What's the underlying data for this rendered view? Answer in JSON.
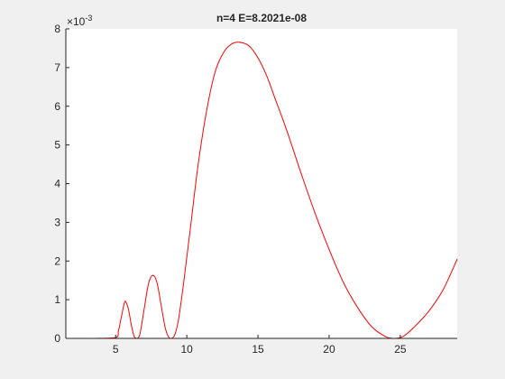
{
  "chart_data": {
    "type": "line",
    "title": "n=4 E=8.2021e-08",
    "xlabel": "",
    "ylabel": "",
    "xlim": [
      1.5,
      29
    ],
    "ylim": [
      0,
      8
    ],
    "y_exponent_label": "×10",
    "y_exponent_power": "-3",
    "x_ticks": [
      5,
      10,
      15,
      20,
      25
    ],
    "x_tick_labels": [
      "5",
      "10",
      "15",
      "20",
      "25"
    ],
    "y_ticks": [
      0,
      1,
      2,
      3,
      4,
      5,
      6,
      7,
      8
    ],
    "y_tick_labels": [
      "0",
      "1",
      "2",
      "3",
      "4",
      "5",
      "6",
      "7",
      "8"
    ],
    "grid": false,
    "background_color": "#f0f0f0",
    "axes_color": "#ffffff",
    "series": [
      {
        "color": "#ff0000",
        "x": [
          1.5,
          3.5,
          5.0,
          5.2,
          5.4,
          5.6,
          5.7,
          5.9,
          6.1,
          6.3,
          6.5,
          6.7,
          7.0,
          7.3,
          7.6,
          7.9,
          8.2,
          8.5,
          8.8,
          9.1,
          9.4,
          9.8,
          10.3,
          10.8,
          11.4,
          12.0,
          12.6,
          13.2,
          13.8,
          14.4,
          15.0,
          15.6,
          16.2,
          17.0,
          18.0,
          19.0,
          20.0,
          21.0,
          22.0,
          23.0,
          24.0,
          24.6,
          25.2,
          26.0,
          27.0,
          28.0,
          29.0
        ],
        "y": [
          0,
          0,
          0.02,
          0.2,
          0.55,
          0.9,
          0.95,
          0.75,
          0.35,
          0.05,
          0.0,
          0.1,
          0.75,
          1.4,
          1.63,
          1.45,
          0.85,
          0.25,
          0.0,
          0.05,
          0.45,
          1.5,
          3.0,
          4.5,
          5.9,
          6.9,
          7.4,
          7.62,
          7.65,
          7.55,
          7.25,
          6.8,
          6.2,
          5.4,
          4.3,
          3.25,
          2.3,
          1.45,
          0.8,
          0.3,
          0.04,
          0.0,
          0.05,
          0.3,
          0.7,
          1.25,
          2.05
        ]
      }
    ]
  }
}
